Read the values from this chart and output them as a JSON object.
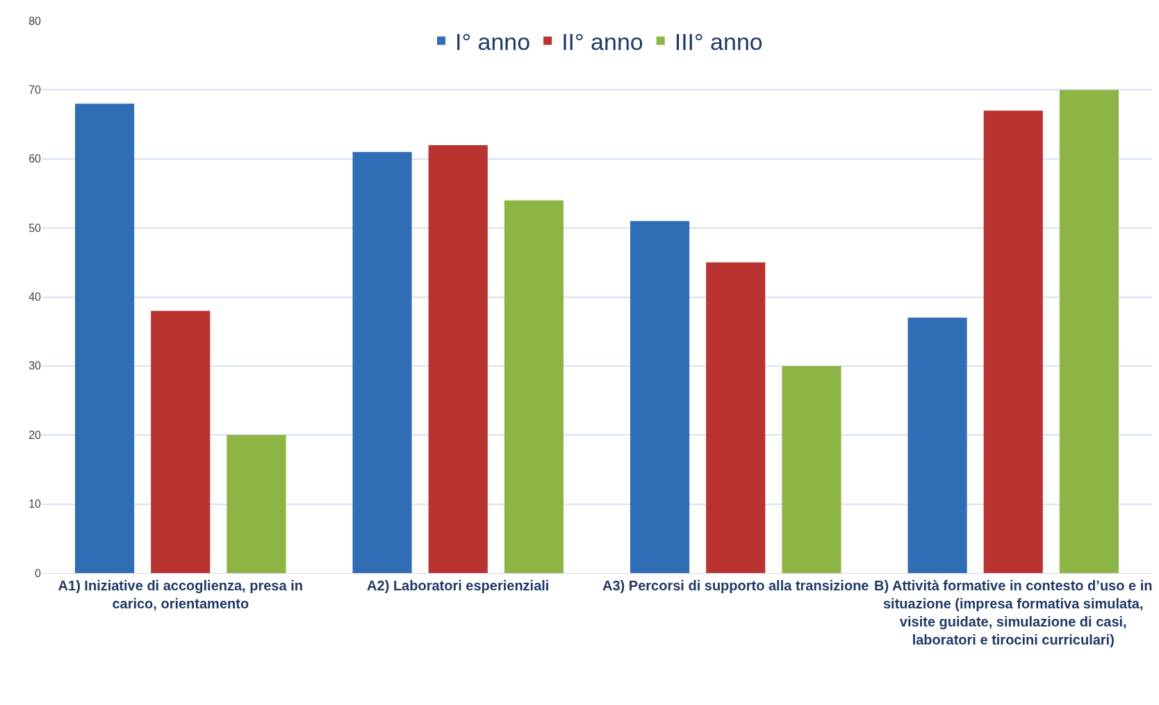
{
  "chart_data": {
    "type": "bar",
    "categories": [
      "A1) Iniziative di accoglienza, presa in carico, orientamento",
      "A2) Laboratori esperienziali",
      "A3) Percorsi di supporto alla transizione",
      "B) Attività formative in contesto d’uso e in situazione (impresa formativa simulata, visite guidate, simulazione di casi, laboratori e tirocini curriculari)"
    ],
    "series": [
      {
        "name": "I° anno",
        "color": "#2f6db5",
        "values": [
          68,
          61,
          51,
          37
        ]
      },
      {
        "name": "II° anno",
        "color": "#b93330",
        "values": [
          38,
          62,
          45,
          67
        ]
      },
      {
        "name": "III° anno",
        "color": "#8db545",
        "values": [
          20,
          54,
          30,
          70
        ]
      }
    ],
    "ylim": [
      0,
      80
    ],
    "yticks": [
      0,
      10,
      20,
      30,
      40,
      50,
      60,
      70,
      80
    ],
    "grid": "y",
    "legend": "top"
  }
}
